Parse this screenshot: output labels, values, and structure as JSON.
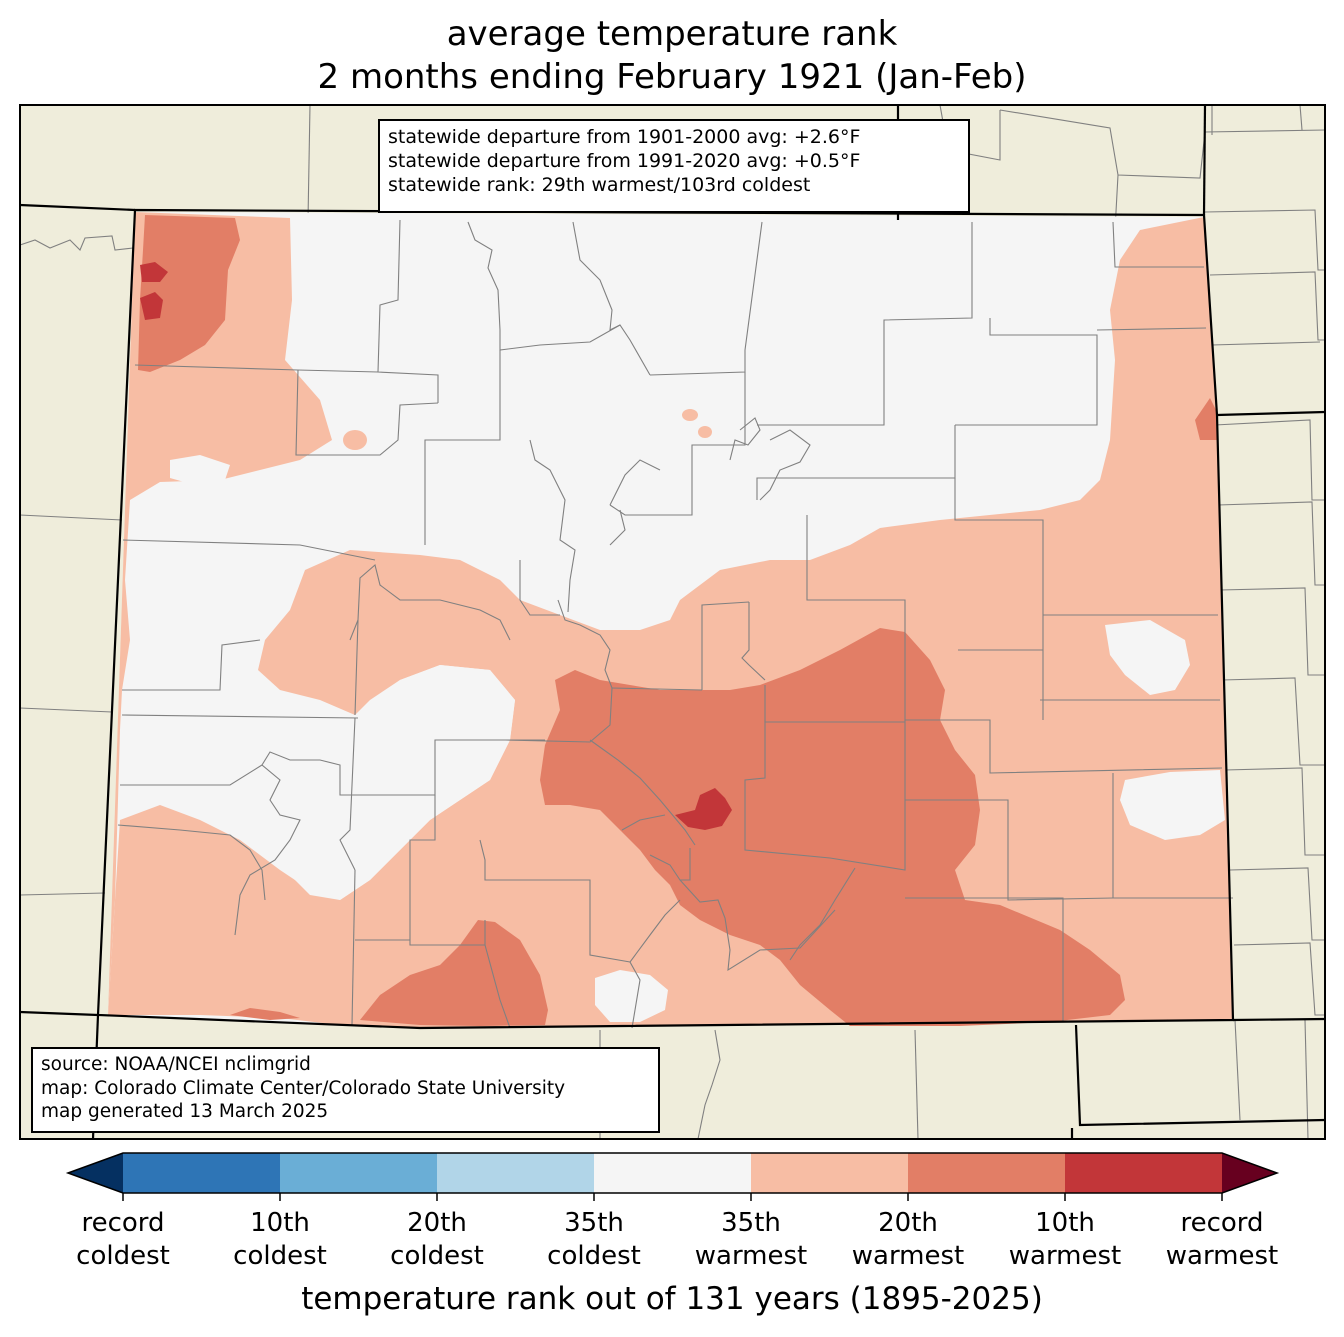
{
  "title": {
    "line1": "average temperature rank",
    "line2": "2 months ending February 1921 (Jan-Feb)"
  },
  "stats": {
    "line1": "statewide departure from 1901-2000 avg: +2.6°F",
    "line2": "statewide departure from 1991-2020 avg: +0.5°F",
    "line3": "statewide rank: 29th warmest/103rd coldest"
  },
  "source": {
    "line1": "source: NOAA/NCEI nclimgrid",
    "line2": "map: Colorado Climate Center/Colorado State University",
    "line3": "map generated 13 March 2025"
  },
  "colorbar": {
    "title": "temperature rank out of 131 years (1895-2025)",
    "colors": [
      "#053061",
      "#2e75b6",
      "#6aaed6",
      "#b1d5e8",
      "#f5f5f5",
      "#f7bda4",
      "#e27e66",
      "#c23639",
      "#67001f"
    ],
    "ticks": [
      {
        "line1": "record",
        "line2": "coldest"
      },
      {
        "line1": "10th",
        "line2": "coldest"
      },
      {
        "line1": "20th",
        "line2": "coldest"
      },
      {
        "line1": "35th",
        "line2": "coldest"
      },
      {
        "line1": "35th",
        "line2": "warmest"
      },
      {
        "line1": "20th",
        "line2": "warmest"
      },
      {
        "line1": "10th",
        "line2": "warmest"
      },
      {
        "line1": "record",
        "line2": "warmest"
      }
    ]
  },
  "map_colors": {
    "land_outside": "#efeddb",
    "neutral": "#f5f5f5",
    "warm_35": "#f7bda4",
    "warm_20": "#e27e66",
    "warm_10": "#c23639",
    "county_lines": "#808080",
    "state_lines": "#000000"
  }
}
